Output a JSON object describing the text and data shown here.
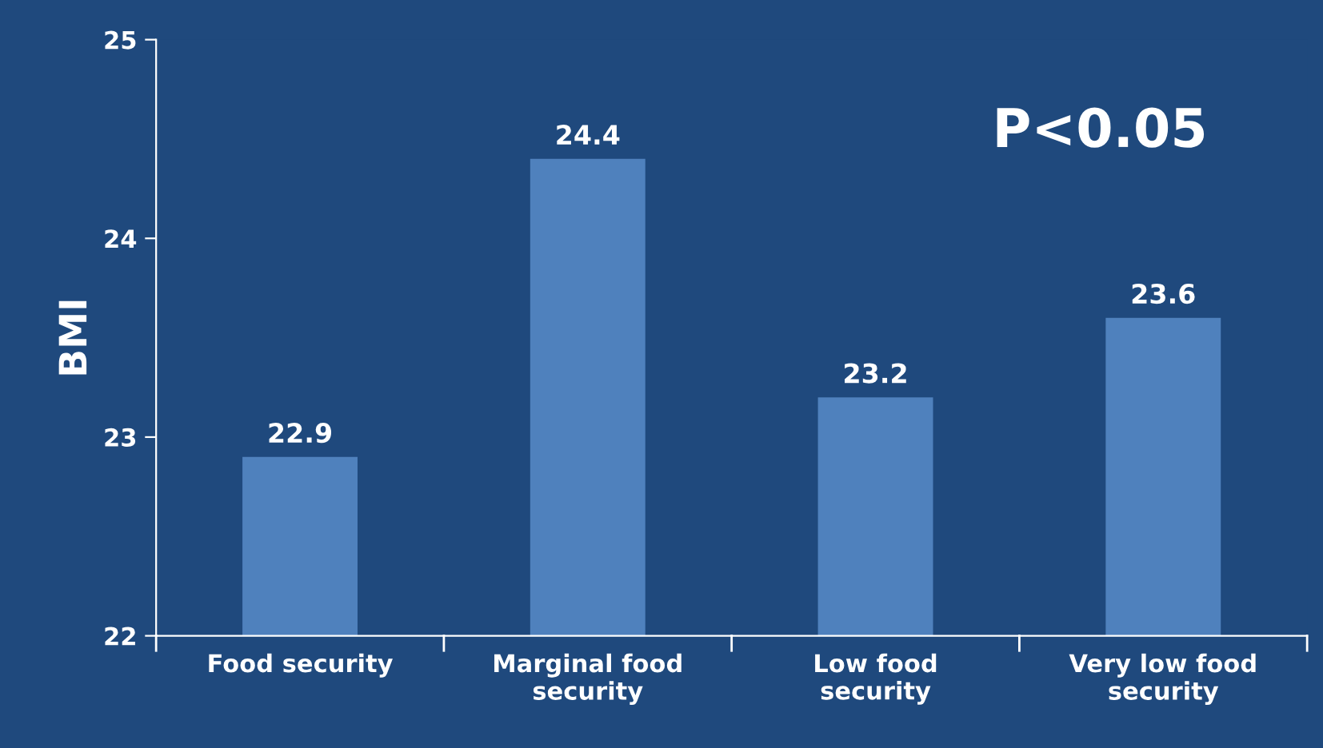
{
  "chart_data": {
    "type": "bar",
    "ylabel": "BMI",
    "categories": [
      "Food security",
      "Marginal food security",
      "Low food security",
      "Very low food security"
    ],
    "values": [
      22.9,
      24.4,
      23.2,
      23.6
    ],
    "color": "#4f81bd",
    "ylim": [
      22,
      25
    ],
    "yticks": [
      22,
      23,
      24,
      25
    ],
    "grid": false,
    "data_labels": true,
    "annotations": [
      "P<0.05"
    ]
  }
}
